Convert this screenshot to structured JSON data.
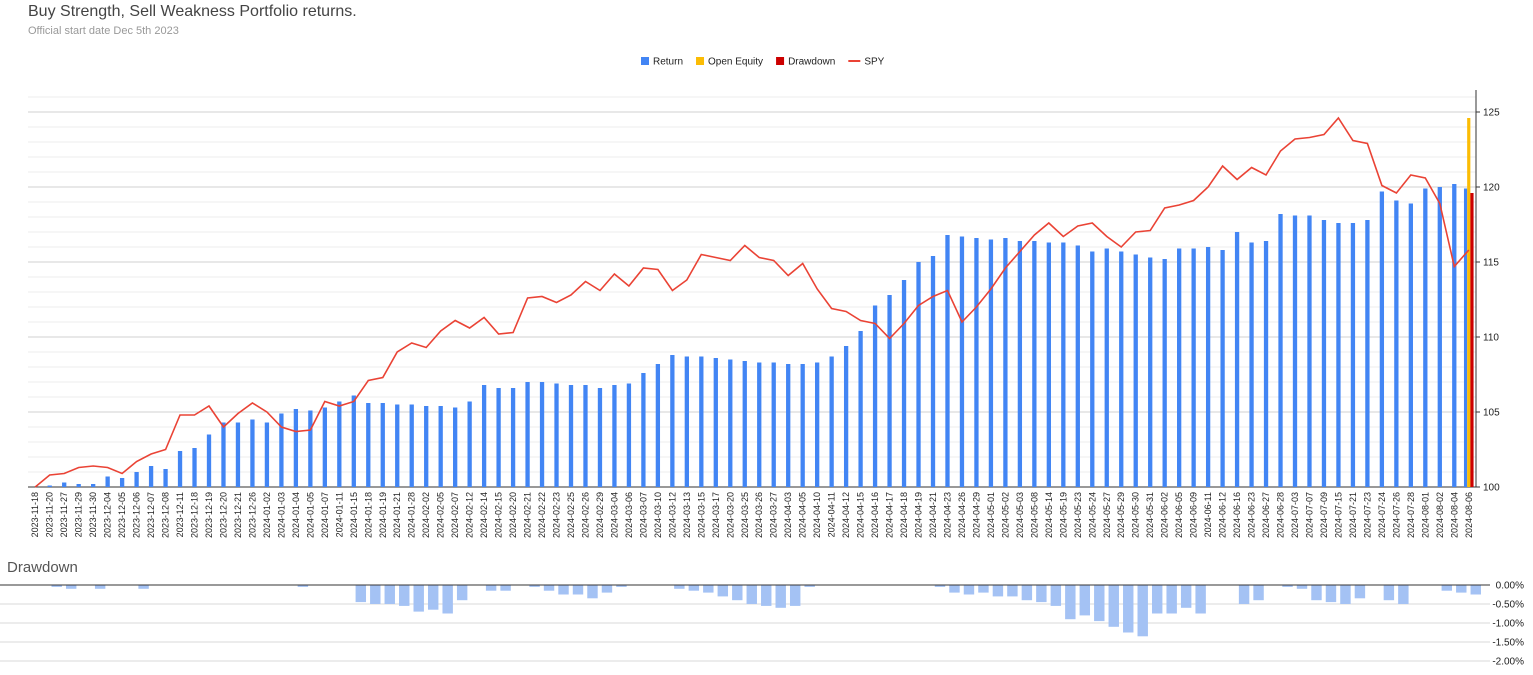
{
  "chart_data": [
    {
      "type": "combo",
      "title": "Buy Strength, Sell Weakness Portfolio returns.",
      "subtitle": "Official start date Dec 5th 2023",
      "categories": [
        "2023-11-18",
        "2023-11-20",
        "2023-11-27",
        "2023-11-29",
        "2023-11-30",
        "2023-12-04",
        "2023-12-05",
        "2023-12-06",
        "2023-12-07",
        "2023-12-08",
        "2023-12-11",
        "2023-12-18",
        "2023-12-19",
        "2023-12-20",
        "2023-12-21",
        "2023-12-26",
        "2024-01-02",
        "2024-01-03",
        "2024-01-04",
        "2024-01-05",
        "2024-01-07",
        "2024-01-11",
        "2024-01-15",
        "2024-01-18",
        "2024-01-19",
        "2024-01-21",
        "2024-01-28",
        "2024-02-02",
        "2024-02-05",
        "2024-02-07",
        "2024-02-12",
        "2024-02-14",
        "2024-02-15",
        "2024-02-20",
        "2024-02-21",
        "2024-02-22",
        "2024-02-23",
        "2024-02-25",
        "2024-02-26",
        "2024-02-29",
        "2024-03-04",
        "2024-03-06",
        "2024-03-07",
        "2024-03-10",
        "2024-03-12",
        "2024-03-13",
        "2024-03-15",
        "2024-03-17",
        "2024-03-20",
        "2024-03-25",
        "2024-03-26",
        "2024-03-27",
        "2024-04-03",
        "2024-04-05",
        "2024-04-10",
        "2024-04-11",
        "2024-04-12",
        "2024-04-15",
        "2024-04-16",
        "2024-04-17",
        "2024-04-18",
        "2024-04-19",
        "2024-04-21",
        "2024-04-23",
        "2024-04-26",
        "2024-04-29",
        "2024-05-01",
        "2024-05-02",
        "2024-05-03",
        "2024-05-08",
        "2024-05-14",
        "2024-05-19",
        "2024-05-23",
        "2024-05-24",
        "2024-05-27",
        "2024-05-29",
        "2024-05-30",
        "2024-05-31",
        "2024-06-02",
        "2024-06-05",
        "2024-06-09",
        "2024-06-11",
        "2024-06-12",
        "2024-06-16",
        "2024-06-23",
        "2024-06-27",
        "2024-06-28",
        "2024-07-03",
        "2024-07-07",
        "2024-07-09",
        "2024-07-15",
        "2024-07-21",
        "2024-07-23",
        "2024-07-24",
        "2024-07-26",
        "2024-07-28",
        "2024-08-01",
        "2024-08-02",
        "2024-08-04",
        "2024-08-06"
      ],
      "series": [
        {
          "name": "Return",
          "type": "bar",
          "color": "#4285f4",
          "values": [
            100.0,
            100.1,
            100.3,
            100.2,
            100.2,
            100.7,
            100.6,
            101.0,
            101.4,
            101.2,
            102.4,
            102.6,
            103.5,
            104.3,
            104.3,
            104.5,
            104.3,
            104.9,
            105.2,
            105.1,
            105.3,
            105.7,
            106.1,
            105.6,
            105.6,
            105.5,
            105.5,
            105.4,
            105.4,
            105.3,
            105.7,
            106.8,
            106.6,
            106.6,
            107.0,
            107.0,
            106.9,
            106.8,
            106.8,
            106.6,
            106.8,
            106.9,
            107.6,
            108.2,
            108.8,
            108.7,
            108.7,
            108.6,
            108.5,
            108.4,
            108.3,
            108.3,
            108.2,
            108.2,
            108.3,
            108.7,
            109.4,
            110.4,
            112.1,
            112.8,
            113.8,
            115.0,
            115.4,
            116.8,
            116.7,
            116.6,
            116.5,
            116.6,
            116.4,
            116.4,
            116.3,
            116.3,
            116.1,
            115.7,
            115.9,
            115.7,
            115.5,
            115.3,
            115.2,
            115.9,
            115.9,
            116.0,
            115.8,
            117.0,
            116.3,
            116.4,
            118.2,
            118.1,
            118.1,
            117.8,
            117.6,
            117.6,
            117.8,
            119.7,
            119.1,
            118.9,
            119.9,
            120.0,
            120.2,
            119.9
          ]
        },
        {
          "name": "Open Equity",
          "type": "bar",
          "color": "#fbbc04",
          "values": [
            null,
            null,
            null,
            null,
            null,
            null,
            null,
            null,
            null,
            null,
            null,
            null,
            null,
            null,
            null,
            null,
            null,
            null,
            null,
            null,
            null,
            null,
            null,
            null,
            null,
            null,
            null,
            null,
            null,
            null,
            null,
            null,
            null,
            null,
            null,
            null,
            null,
            null,
            null,
            null,
            null,
            null,
            null,
            null,
            null,
            null,
            null,
            null,
            null,
            null,
            null,
            null,
            null,
            null,
            null,
            null,
            null,
            null,
            null,
            null,
            null,
            null,
            null,
            null,
            null,
            null,
            null,
            null,
            null,
            null,
            null,
            null,
            null,
            null,
            null,
            null,
            null,
            null,
            null,
            null,
            null,
            null,
            null,
            null,
            null,
            null,
            null,
            null,
            null,
            null,
            null,
            null,
            null,
            null,
            null,
            null,
            null,
            null,
            null,
            124.6
          ]
        },
        {
          "name": "Drawdown",
          "type": "bar",
          "color": "#cc0000",
          "values": [
            null,
            null,
            null,
            null,
            null,
            null,
            null,
            null,
            null,
            null,
            null,
            null,
            null,
            null,
            null,
            null,
            null,
            null,
            null,
            null,
            null,
            null,
            null,
            null,
            null,
            null,
            null,
            null,
            null,
            null,
            null,
            null,
            null,
            null,
            null,
            null,
            null,
            null,
            null,
            null,
            null,
            null,
            null,
            null,
            null,
            null,
            null,
            null,
            null,
            null,
            null,
            null,
            null,
            null,
            null,
            null,
            null,
            null,
            null,
            null,
            null,
            null,
            null,
            null,
            null,
            null,
            null,
            null,
            null,
            null,
            null,
            null,
            null,
            null,
            null,
            null,
            null,
            null,
            null,
            null,
            null,
            null,
            null,
            null,
            null,
            null,
            null,
            null,
            null,
            null,
            null,
            null,
            null,
            null,
            null,
            null,
            null,
            null,
            null,
            119.6
          ]
        },
        {
          "name": "SPY",
          "type": "line",
          "color": "#ea4335",
          "values": [
            100.0,
            100.8,
            100.9,
            101.3,
            101.4,
            101.3,
            100.9,
            101.7,
            102.2,
            102.5,
            104.8,
            104.8,
            105.4,
            104.0,
            104.9,
            105.6,
            105.0,
            104.0,
            103.7,
            103.8,
            105.7,
            105.4,
            105.7,
            107.1,
            107.3,
            109.0,
            109.6,
            109.3,
            110.4,
            111.1,
            110.6,
            111.3,
            110.2,
            110.3,
            112.6,
            112.7,
            112.3,
            112.8,
            113.7,
            113.1,
            114.2,
            113.4,
            114.6,
            114.5,
            113.1,
            113.8,
            115.5,
            115.3,
            115.1,
            116.1,
            115.3,
            115.1,
            114.1,
            114.9,
            113.2,
            111.9,
            111.7,
            111.1,
            110.9,
            109.9,
            110.9,
            112.1,
            112.7,
            113.1,
            111.0,
            112.0,
            113.2,
            114.6,
            115.7,
            116.8,
            117.6,
            116.7,
            117.4,
            117.6,
            116.7,
            116.0,
            117.0,
            117.1,
            118.6,
            118.8,
            119.1,
            120.0,
            121.4,
            120.5,
            121.3,
            120.8,
            122.4,
            123.2,
            123.3,
            123.5,
            124.6,
            123.1,
            122.9,
            120.1,
            119.6,
            120.8,
            120.6,
            118.9,
            114.7,
            115.8
          ]
        }
      ],
      "ylim": [
        100,
        126
      ],
      "yticks": [
        100,
        105,
        110,
        115,
        120,
        125
      ],
      "minor_yticks": [
        101,
        102,
        103,
        104,
        106,
        107,
        108,
        109,
        111,
        112,
        113,
        114,
        116,
        117,
        118,
        119,
        121,
        122,
        123,
        124,
        126
      ],
      "grid": true,
      "legend": "top"
    },
    {
      "type": "bar",
      "title": "Drawdown",
      "color": "#a4c2f4",
      "values": [
        null,
        -0.05,
        -0.1,
        null,
        -0.1,
        null,
        null,
        -0.1,
        null,
        null,
        null,
        null,
        null,
        null,
        null,
        null,
        null,
        null,
        -0.05,
        null,
        null,
        null,
        -0.45,
        -0.5,
        -0.5,
        -0.55,
        -0.7,
        -0.65,
        -0.75,
        -0.4,
        null,
        -0.15,
        -0.15,
        null,
        -0.05,
        -0.15,
        -0.25,
        -0.25,
        -0.35,
        -0.2,
        -0.05,
        null,
        null,
        null,
        -0.1,
        -0.15,
        -0.2,
        -0.3,
        -0.4,
        -0.5,
        -0.55,
        -0.6,
        -0.55,
        -0.05,
        null,
        null,
        null,
        null,
        null,
        null,
        null,
        null,
        -0.05,
        -0.2,
        -0.25,
        -0.2,
        -0.3,
        -0.3,
        -0.4,
        -0.45,
        -0.55,
        -0.9,
        -0.8,
        -0.95,
        -1.1,
        -1.25,
        -1.35,
        -0.75,
        -0.75,
        -0.6,
        -0.75,
        null,
        null,
        -0.5,
        -0.4,
        null,
        -0.05,
        -0.1,
        -0.4,
        -0.45,
        -0.5,
        -0.35,
        null,
        -0.4,
        -0.5,
        null,
        null,
        -0.15,
        -0.2,
        -0.25
      ],
      "ylim": [
        -2,
        0
      ],
      "yticks": [
        {
          "value": 0,
          "label": "0.00%"
        },
        {
          "value": -0.5,
          "label": "-0.50%"
        },
        {
          "value": -1,
          "label": "-1.00%"
        },
        {
          "value": -1.5,
          "label": "-1.50%"
        },
        {
          "value": -2,
          "label": "-2.00%"
        }
      ],
      "grid": true
    }
  ]
}
